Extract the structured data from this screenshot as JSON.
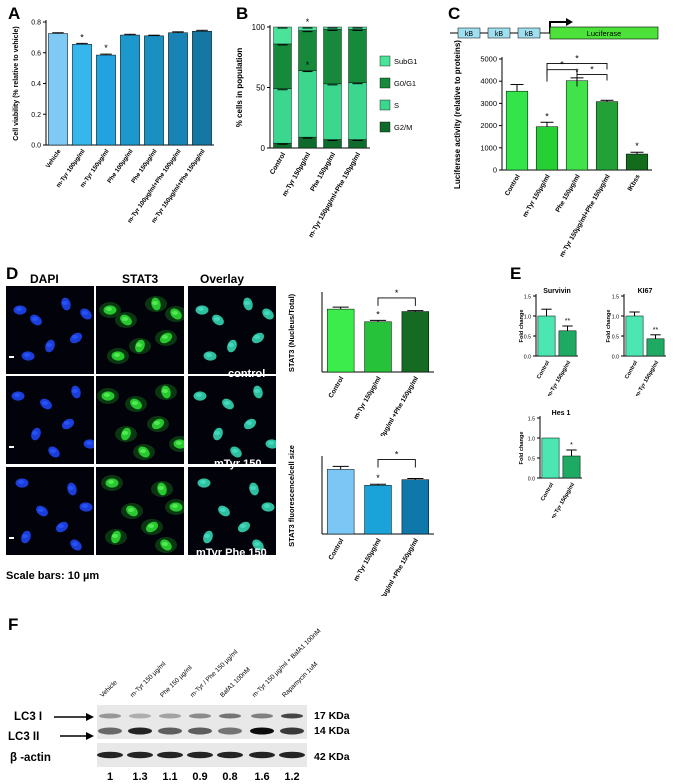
{
  "panels": {
    "A": "A",
    "B": "B",
    "C": "C",
    "D": "D",
    "E": "E",
    "F": "F"
  },
  "colors": {
    "panelA": [
      "#7fc9f5",
      "#35b6ec",
      "#20a3de",
      "#1c98cc",
      "#1a8fc1",
      "#1883b4",
      "#1478a3"
    ],
    "panelB_series": {
      "SubG1": "#4be39a",
      "G0/G1": "#168a3a",
      "S": "#3bd78f",
      "G2/M": "#0f6b2c"
    },
    "panelC": [
      "#33e54a",
      "#26cf33",
      "#41e24a",
      "#23a036",
      "#136b1c"
    ],
    "panelD_top": [
      "#3cec4c",
      "#26c23a",
      "#156b22"
    ],
    "panelD_bottom": [
      "#7bc6f4",
      "#1aa3d9",
      "#0f77a9"
    ],
    "panelE": [
      "#4be6b1",
      "#1faa63"
    ],
    "construct_box": "#9fdff0",
    "luciferase_box": "#4ce23a"
  },
  "chart_data": [
    {
      "id": "A",
      "type": "bar",
      "ylabel": "Cell viability (% relative to vehicle)",
      "ylim": [
        0,
        0.8
      ],
      "yticks": [
        "0.0",
        "0.2",
        "0.4",
        "0.6",
        "0.8"
      ],
      "categories": [
        "Vehicle",
        "m-Tyr 100µg/ml",
        "m-Tyr 150µg/ml",
        "Phe 100µg/ml",
        "Phe 150µg/ml",
        "m-Tyr 100µg/ml+Phe 100µg/ml",
        "m-Tyr 150µg/ml+Phe 150µg/ml"
      ],
      "values": [
        0.725,
        0.655,
        0.585,
        0.715,
        0.71,
        0.73,
        0.74
      ],
      "errors": [
        0.005,
        0.006,
        0.006,
        0.005,
        0.004,
        0.006,
        0.006
      ],
      "annotations": [
        "",
        "*",
        "*",
        "",
        "",
        "",
        ""
      ]
    },
    {
      "id": "B",
      "type": "bar",
      "stacked": true,
      "ylabel": "% cells in population",
      "ylim": [
        0,
        100
      ],
      "yticks": [
        "0",
        "50",
        "100"
      ],
      "categories": [
        "Control",
        "m-Tyr 150µg/ml",
        "Phe 150µg/ml",
        "m-Tyr 150µg/ml+Phe 150µg/ml"
      ],
      "series": [
        {
          "name": "G2/M",
          "values": [
            4,
            9,
            7,
            7
          ]
        },
        {
          "name": "S",
          "values": [
            45,
            55,
            46,
            47
          ]
        },
        {
          "name": "G0/G1",
          "values": [
            37,
            33,
            45,
            44
          ]
        },
        {
          "name": "SubG1",
          "values": [
            14,
            3,
            2,
            2
          ]
        }
      ],
      "legend_order": [
        "SubG1",
        "G0/G1",
        "S",
        "G2/M"
      ],
      "annotations": [
        "",
        "*",
        "",
        ""
      ],
      "legend_position": "right"
    },
    {
      "id": "C",
      "type": "bar",
      "ylabel": "Luciferase activity (relative to proteins)",
      "ylim": [
        0,
        5000
      ],
      "yticks": [
        "0",
        "1000",
        "2000",
        "3000",
        "4000",
        "5000"
      ],
      "categories": [
        "Control",
        "m-Tyr 150µg/ml",
        "Phe 150µg/ml",
        "m-Tyr 150µg/ml+Phe 150µg/ml",
        "IKbss"
      ],
      "values": [
        3550,
        1950,
        4020,
        3080,
        720
      ],
      "errors": [
        300,
        200,
        130,
        60,
        80
      ],
      "annotations": [
        "",
        "*",
        "*",
        "",
        "*"
      ],
      "construct_labels": [
        "kB",
        "kB",
        "kB"
      ],
      "construct_gene": "Luciferase"
    },
    {
      "id": "D1",
      "type": "bar",
      "ylabel": "STAT3 (Nucleus/Total)",
      "ylim": [
        0,
        0.8
      ],
      "categories": [
        "Control",
        "m-Tyr 150µg/ml",
        "m-Tyr 150µg/ml +Phe 150µg/ml"
      ],
      "values": [
        0.645,
        0.515,
        0.62
      ],
      "errors": [
        0.02,
        0.015,
        0.01
      ],
      "annotations": [
        "",
        "*",
        ""
      ]
    },
    {
      "id": "D2",
      "type": "bar",
      "ylabel": "STAT3 fluorescence/cell size",
      "ylim": [
        0,
        200
      ],
      "categories": [
        "Control",
        "m-Tyr 150µg/ml",
        "m-Tyr 150µg/ml +Phe 150µg/ml"
      ],
      "values": [
        170,
        128,
        143
      ],
      "errors": [
        8,
        3,
        3
      ],
      "annotations": [
        "",
        "*",
        ""
      ]
    },
    {
      "id": "E1",
      "type": "bar",
      "title": "Survivin",
      "ylabel": "Fold change",
      "ylim": [
        0,
        1.5
      ],
      "yticks": [
        "0.0",
        "0.5",
        "1.0",
        "1.5"
      ],
      "categories": [
        "Control",
        "m-Tyr 150µg/ml"
      ],
      "values": [
        1.0,
        0.63
      ],
      "errors": [
        0.17,
        0.12
      ],
      "annotations": [
        "",
        "**"
      ]
    },
    {
      "id": "E2",
      "type": "bar",
      "title": "KI67",
      "ylabel": "Fold change",
      "ylim": [
        0,
        1.5
      ],
      "yticks": [
        "0.0",
        "0.5",
        "1.0",
        "1.5"
      ],
      "categories": [
        "Control",
        "m-Tyr 150µg/ml"
      ],
      "values": [
        1.0,
        0.43
      ],
      "errors": [
        0.1,
        0.1
      ],
      "annotations": [
        "",
        "**"
      ]
    },
    {
      "id": "E3",
      "type": "bar",
      "title": "Hes 1",
      "ylabel": "Fold change",
      "ylim": [
        0,
        1.5
      ],
      "yticks": [
        "0.0",
        "0.5",
        "1.0",
        "1.5"
      ],
      "categories": [
        "Control",
        "m-Tyr 150µg/ml"
      ],
      "values": [
        1.0,
        0.55
      ],
      "errors": [
        0.0,
        0.15
      ],
      "annotations": [
        "",
        "*"
      ]
    }
  ],
  "microscopy": {
    "headers": [
      "DAPI",
      "STAT3",
      "Overlay"
    ],
    "row_labels": [
      "control",
      "mTyr 150",
      "mTyr Phe 150"
    ],
    "scale_bar_text": "Scale bars: 10 µm"
  },
  "western": {
    "lanes": [
      "Vehicle",
      "m-Tyr 150 µg/ml",
      "Phe 150 µg/ml",
      "m-Tyr / Phe 150 µg/ml",
      "BafA1 100nM",
      "m-Tyr 150 µg/ml + BafA1 100nM",
      "Rapamycin 1uM"
    ],
    "left_labels": [
      "LC3 I",
      "LC3 II",
      "β -actin"
    ],
    "kda_labels": [
      "17 KDa",
      "14 KDa",
      "42 KDa"
    ],
    "quantification": [
      "1",
      "1.3",
      "1.1",
      "0.9",
      "0.8",
      "1.6",
      "1.2"
    ]
  }
}
